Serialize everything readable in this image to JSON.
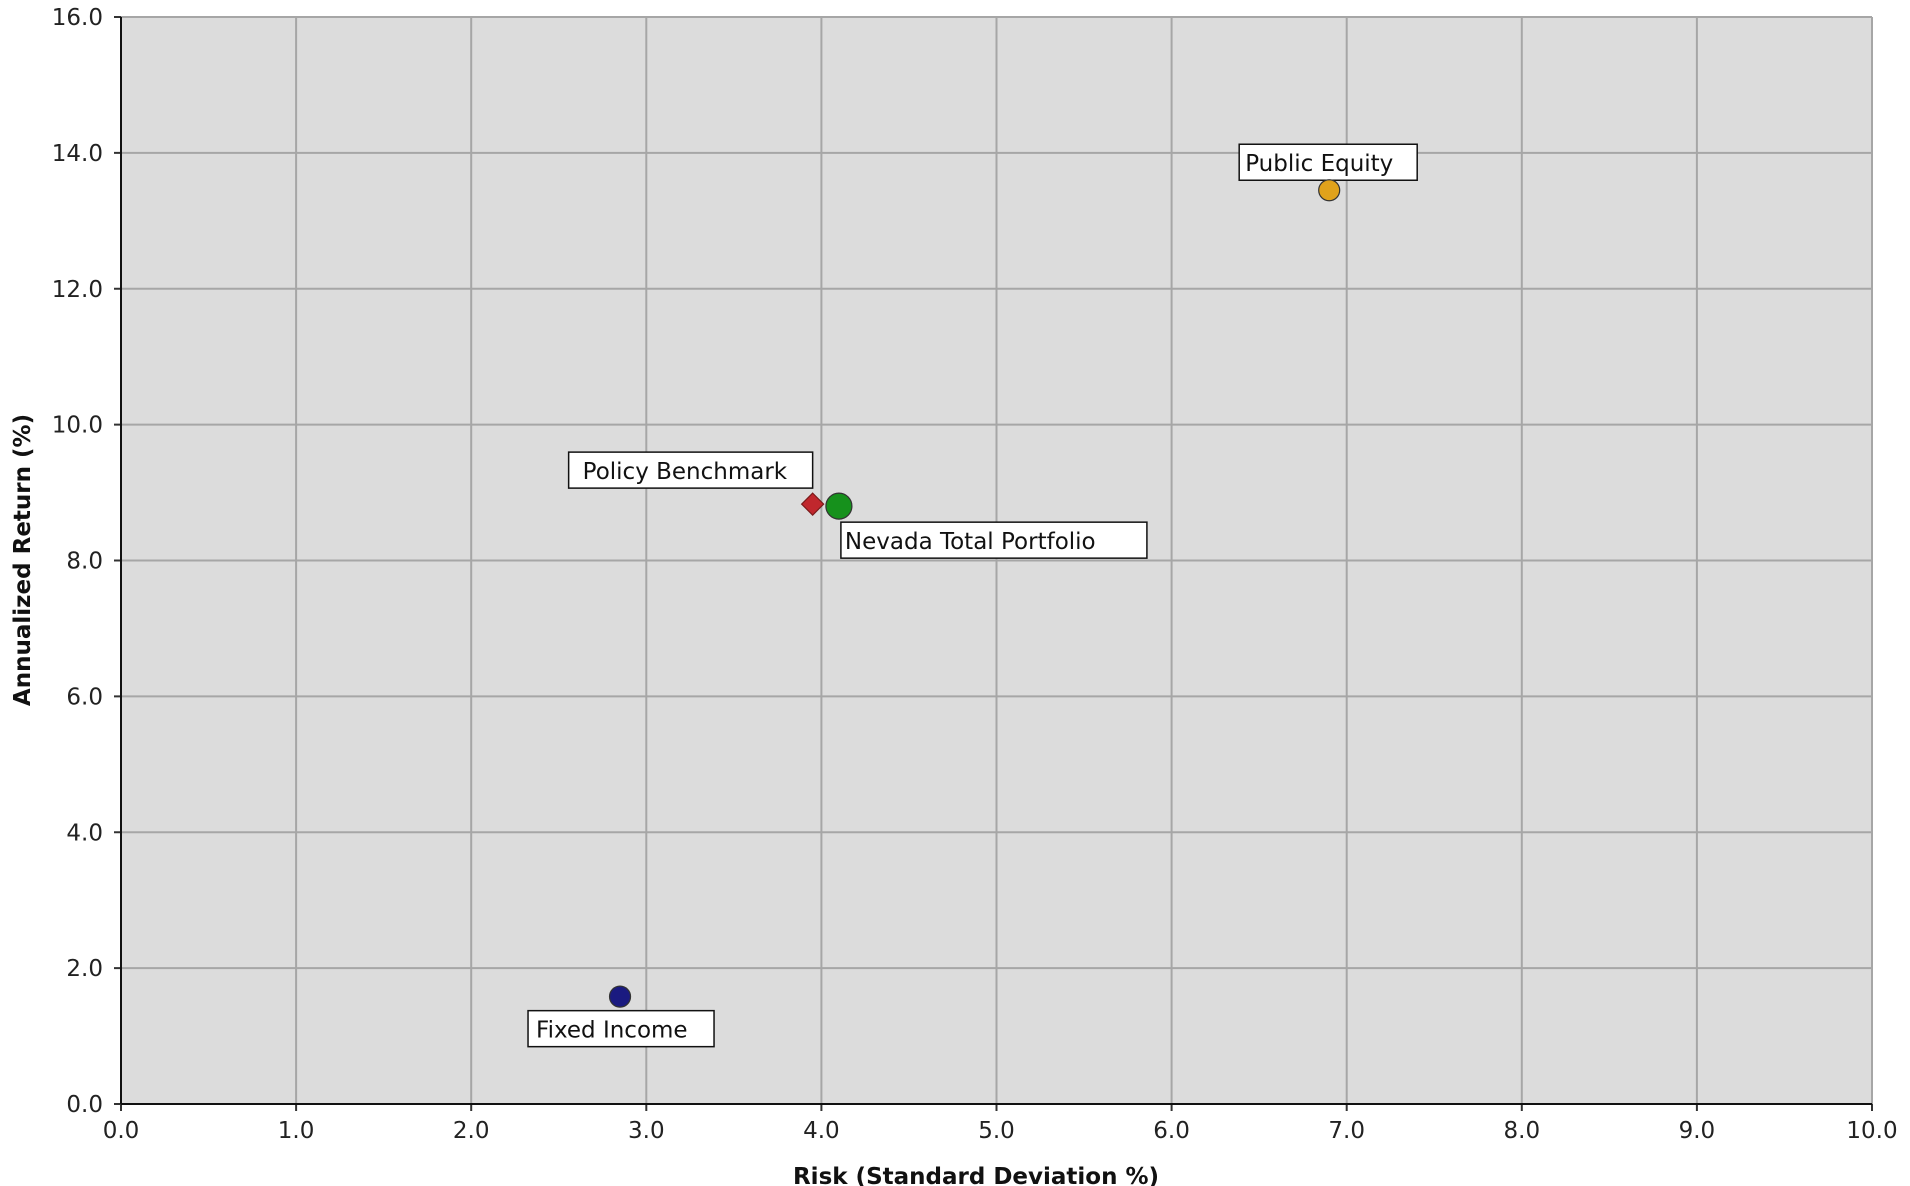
{
  "chart_data": {
    "type": "scatter",
    "title": "",
    "xlabel": "Risk (Standard Deviation %)",
    "ylabel": "Annualized Return (%)",
    "xlim": [
      0,
      10
    ],
    "ylim": [
      0,
      16
    ],
    "x_ticks": [
      "0.0",
      "1.0",
      "2.0",
      "3.0",
      "4.0",
      "5.0",
      "6.0",
      "7.0",
      "8.0",
      "9.0",
      "10.0"
    ],
    "y_ticks": [
      "0.0",
      "2.0",
      "4.0",
      "6.0",
      "8.0",
      "10.0",
      "12.0",
      "14.0",
      "16.0"
    ],
    "grid": true,
    "plot_background": "#dcdcdc",
    "grid_color": "#a6a6a6",
    "points": [
      {
        "name": "Public Equity",
        "x": 6.9,
        "y": 13.45,
        "marker": "circle",
        "color": "#e0a21c",
        "label_position": "above"
      },
      {
        "name": "Policy Benchmark",
        "x": 3.95,
        "y": 8.83,
        "marker": "diamond",
        "color": "#c0272d",
        "label_position": "upper-left"
      },
      {
        "name": "Nevada Total Portfolio",
        "x": 4.1,
        "y": 8.8,
        "marker": "circle-large",
        "color": "#16911c",
        "label_position": "lower-right"
      },
      {
        "name": "Fixed Income",
        "x": 2.85,
        "y": 1.58,
        "marker": "circle",
        "color": "#1a1a80",
        "label_position": "below"
      }
    ]
  }
}
